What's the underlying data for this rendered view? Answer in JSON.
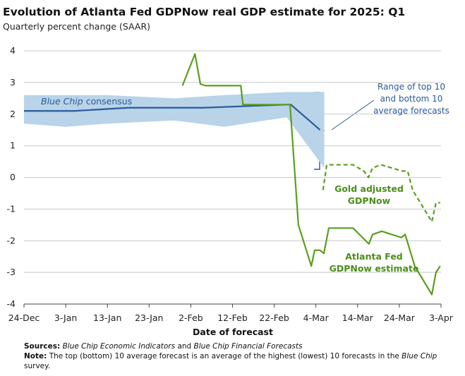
{
  "chart_data": {
    "type": "line",
    "title": "Evolution of Atlanta Fed GDPNow real GDP estimate for 2025: Q1",
    "subtitle": "Quarterly percent change (SAAR)",
    "xlabel": "Date of forecast",
    "xlim": [
      0,
      100
    ],
    "xticks": [
      {
        "value": 0,
        "label": "24-Dec"
      },
      {
        "value": 10,
        "label": "3-Jan"
      },
      {
        "value": 20,
        "label": "13-Jan"
      },
      {
        "value": 30,
        "label": "23-Jan"
      },
      {
        "value": 40,
        "label": "2-Feb"
      },
      {
        "value": 50,
        "label": "12-Feb"
      },
      {
        "value": 60,
        "label": "22-Feb"
      },
      {
        "value": 70,
        "label": "4-Mar"
      },
      {
        "value": 80,
        "label": "14-Mar"
      },
      {
        "value": 90,
        "label": "24-Mar"
      },
      {
        "value": 100,
        "label": "3-Apr"
      }
    ],
    "ylim": [
      -4,
      4
    ],
    "yticks": [
      -4,
      -3,
      -2,
      -1,
      0,
      1,
      2,
      3,
      4
    ],
    "grid": true,
    "band": {
      "color": "#b9d3e8",
      "x": [
        0,
        10,
        20,
        36,
        48,
        63,
        72
      ],
      "upper": [
        2.6,
        2.6,
        2.6,
        2.5,
        2.6,
        2.7,
        2.7
      ],
      "lower": [
        1.7,
        1.6,
        1.7,
        1.8,
        1.6,
        1.9,
        0.3
      ],
      "label_lines": [
        "Range of top 10",
        "and bottom 10",
        "average forecasts"
      ]
    },
    "series": [
      {
        "label_parts": [
          "Blue Chip",
          "consensus"
        ],
        "color": "#2b5a9b",
        "dashed": false,
        "x": [
          0,
          12,
          25,
          43,
          63,
          64,
          71
        ],
        "values": [
          2.1,
          2.1,
          2.2,
          2.2,
          2.3,
          2.3,
          1.5
        ]
      },
      {
        "label_lines": [
          "Gold adjusted",
          "GDPNow"
        ],
        "color": "#5a9e1e",
        "dashed": true,
        "x": [
          71.7,
          72.6,
          78.9,
          81.5,
          82.6,
          83.6,
          85.6,
          90.7,
          92,
          93.2,
          97.8,
          98.8,
          99.8
        ],
        "values": [
          -0.4,
          0.4,
          0.4,
          0.2,
          0.0,
          0.3,
          0.4,
          0.2,
          0.2,
          -0.4,
          -1.4,
          -0.8,
          -0.8
        ]
      },
      {
        "label_lines": [
          "Atlanta Fed",
          "GDPNow estimate"
        ],
        "color": "#5a9e1e",
        "dashed": false,
        "x": [
          38,
          41,
          42.3,
          43.5,
          52,
          52.5,
          60,
          63.8,
          65.8,
          68.9,
          69.7,
          71,
          71.9,
          73.1,
          78.9,
          82.7,
          83.6,
          85.8,
          90.5,
          91.4,
          93.7,
          97.8,
          98.8,
          99.8
        ],
        "values": [
          2.9,
          3.9,
          2.95,
          2.9,
          2.9,
          2.3,
          2.3,
          2.3,
          -1.5,
          -2.8,
          -2.3,
          -2.3,
          -2.4,
          -1.6,
          -1.6,
          -2.1,
          -1.8,
          -1.7,
          -1.9,
          -1.8,
          -2.8,
          -3.7,
          -3.0,
          -2.8
        ]
      }
    ],
    "notes": [
      {
        "parts": [
          {
            "text": "Sources:",
            "bold": true
          },
          {
            "text": "Blue Chip Economic Indicators",
            "italic": true
          },
          {
            "text": "and"
          },
          {
            "text": "Blue Chip Financial Forecasts",
            "italic": true
          }
        ]
      },
      {
        "parts": [
          {
            "text": "Note:",
            "bold": true
          },
          {
            "text": "The top (bottom) 10 average forecast is an average of the highest (lowest) 10 forecasts in the"
          },
          {
            "text": "Blue Chip",
            "italic": true
          },
          {
            "text": "survey."
          }
        ]
      }
    ]
  }
}
